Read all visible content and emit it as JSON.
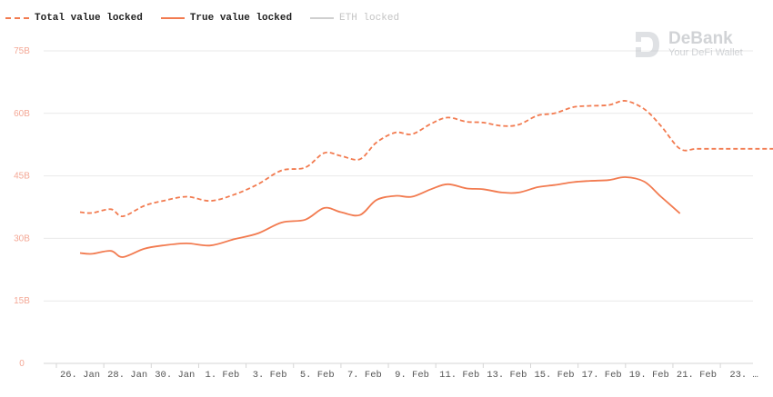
{
  "legend": {
    "total_label": "Total value locked",
    "true_label": "True value locked",
    "eth_label": "ETH locked"
  },
  "watermark": {
    "name": "DeBank",
    "tagline": "Your DeFi Wallet"
  },
  "colors": {
    "series": "#f27b50",
    "disabled": "#cfcfcf",
    "grid": "#e9e9e9",
    "ytick": "#f4a896",
    "xtick": "#555555"
  },
  "chart_data": {
    "type": "line",
    "ylim": [
      0,
      75
    ],
    "yticks": [
      "0",
      "15B",
      "30B",
      "45B",
      "60B",
      "75B"
    ],
    "xticks": [
      "26. Jan",
      "28. Jan",
      "30. Jan",
      "1. Feb",
      "3. Feb",
      "5. Feb",
      "7. Feb",
      "9. Feb",
      "11. Feb",
      "13. Feb",
      "15. Feb",
      "17. Feb",
      "19. Feb",
      "21. Feb",
      "23. …"
    ],
    "x_start_index": -1,
    "series": [
      {
        "name": "Total value locked",
        "style": "dashed",
        "x": [
          -1,
          -0.5,
          0.3,
          0.8,
          1.7,
          2.5,
          3.5,
          4.5,
          5.5,
          6.5,
          7.5,
          8.5,
          9.3,
          10.0,
          10.8,
          11.5,
          12.3,
          13.0,
          13.8,
          14.5,
          15.3,
          16.0,
          16.8,
          17.5,
          18.3,
          19.0,
          19.8,
          20.5,
          21.3,
          22.0,
          22.8,
          23.5,
          24.3,
          25.0,
          25.8,
          26.5,
          27.3,
          28.0,
          28.8,
          29.5
        ],
        "values": [
          36.3,
          36.1,
          37.0,
          35.3,
          37.8,
          39.0,
          40.0,
          39.0,
          40.5,
          43.0,
          46.3,
          47.0,
          50.5,
          49.8,
          49.0,
          53.0,
          55.4,
          55.0,
          57.5,
          59.0,
          58.0,
          57.8,
          57.0,
          57.3,
          59.5,
          60.0,
          61.5,
          61.8,
          62.0,
          63.0,
          61.0,
          57.0,
          51.5,
          51.5,
          51.5,
          51.5,
          51.5,
          51.5,
          51.5,
          51.5
        ]
      },
      {
        "name": "True value locked",
        "style": "solid",
        "x": [
          -1,
          -0.5,
          0.3,
          0.8,
          1.7,
          2.5,
          3.5,
          4.5,
          5.5,
          6.5,
          7.5,
          8.5,
          9.3,
          10.0,
          10.8,
          11.5,
          12.3,
          13.0,
          13.8,
          14.5,
          15.3,
          16.0,
          16.8,
          17.5,
          18.3,
          19.0,
          19.8,
          20.5,
          21.3,
          22.0,
          22.8,
          23.5,
          24.3
        ],
        "values": [
          26.5,
          26.3,
          27.0,
          25.5,
          27.5,
          28.3,
          28.8,
          28.3,
          29.8,
          31.2,
          33.8,
          34.5,
          37.3,
          36.3,
          35.6,
          39.2,
          40.2,
          40.0,
          41.8,
          43.0,
          42.0,
          41.8,
          41.0,
          41.0,
          42.3,
          42.8,
          43.5,
          43.8,
          44.0,
          44.7,
          43.6,
          40.0,
          36.0
        ]
      },
      {
        "name": "ETH locked",
        "style": "hidden",
        "x": [],
        "values": []
      }
    ],
    "grid": true,
    "legend_position": "top-left"
  }
}
